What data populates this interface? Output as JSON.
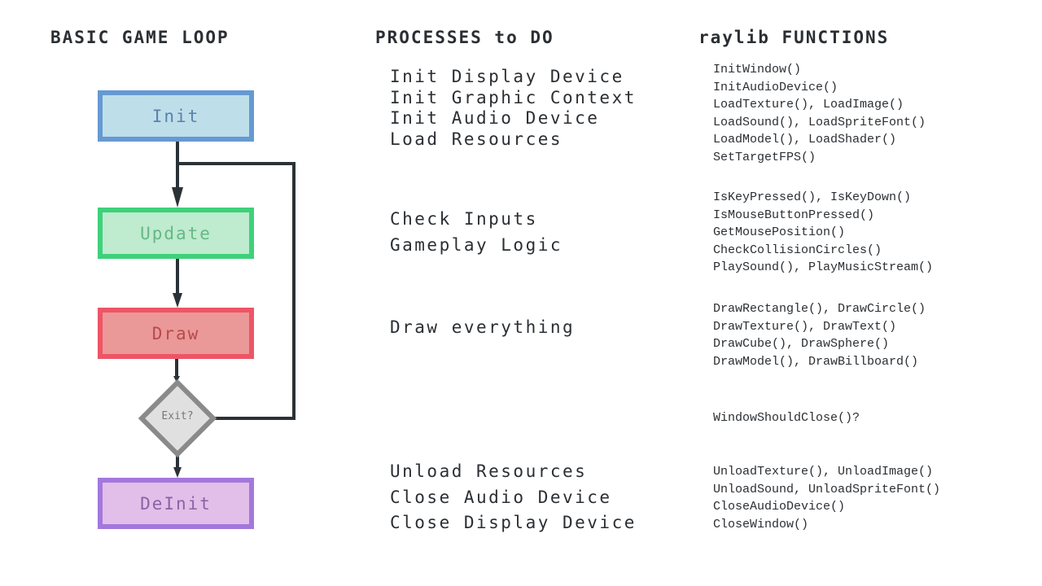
{
  "headers": {
    "loop": "BASIC GAME LOOP",
    "processes": "PROCESSES to DO",
    "functions": "raylib FUNCTIONS"
  },
  "loop": {
    "init": {
      "label": "Init",
      "fill": "#bedfea",
      "border": "#6699d3",
      "text": "#5a82a8"
    },
    "update": {
      "label": "Update",
      "fill": "#bfebcf",
      "border": "#3ed17a",
      "text": "#66b886"
    },
    "draw": {
      "label": "Draw",
      "fill": "#eb9898",
      "border": "#ee5566",
      "text": "#b54c4c"
    },
    "exit": {
      "label": "Exit?",
      "fill": "#e0e0e0",
      "border": "#8a8a8a"
    },
    "deinit": {
      "label": "DeInit",
      "fill": "#e2bfe9",
      "border": "#a477dd",
      "text": "#8a63a6"
    }
  },
  "processes": [
    [
      "Init Display Device",
      "Init Graphic Context",
      "Init Audio Device",
      "Load Resources"
    ],
    [
      "Check Inputs",
      "Gameplay Logic"
    ],
    [
      "Draw everything"
    ],
    [
      "Unload Resources",
      "Close Audio Device",
      "Close Display Device"
    ]
  ],
  "functions": [
    [
      "InitWindow()",
      "InitAudioDevice()",
      "LoadTexture(), LoadImage()",
      "LoadSound(), LoadSpriteFont()",
      "LoadModel(), LoadShader()",
      "SetTargetFPS()"
    ],
    [
      "IsKeyPressed(), IsKeyDown()",
      "IsMouseButtonPressed()",
      "GetMousePosition()",
      "CheckCollisionCircles()",
      "PlaySound(), PlayMusicStream()"
    ],
    [
      "DrawRectangle(), DrawCircle()",
      "DrawTexture(), DrawText()",
      "DrawCube(), DrawSphere()",
      "DrawModel(), DrawBillboard()"
    ],
    [
      "WindowShouldClose()?"
    ],
    [
      "UnloadTexture(), UnloadImage()",
      "UnloadSound, UnloadSpriteFont()",
      "CloseAudioDevice()",
      "CloseWindow()"
    ]
  ]
}
